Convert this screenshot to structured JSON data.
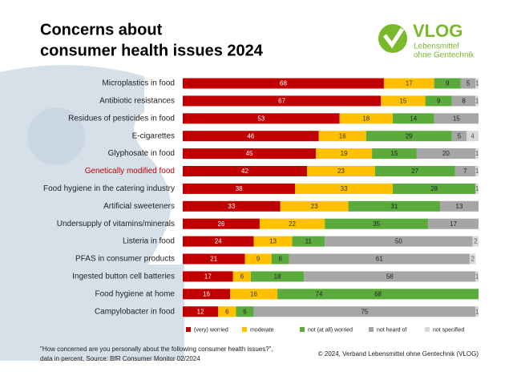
{
  "chart_data": {
    "type": "stacked_bar_horizontal",
    "title": [
      "Concerns about",
      "consumer health issues 2024"
    ],
    "logo": {
      "name": "VLOG",
      "subtitle": [
        "Lebensmittel",
        "ohne Gentechnik"
      ]
    },
    "categories": [
      "Microplastics in food",
      "Antibiotic resistances",
      "Residues of pesticides in food",
      "E-cigarettes",
      "Glyphosate in food",
      "Genetically modified food",
      "Food hygiene in the catering industry",
      "Artificial sweeteners",
      "Undersupply of vitamins/minerals",
      "Listeria in food",
      "PFAS in consumer products",
      "Ingested button cell batteries",
      "Food hygiene at home",
      "Campylobacter in food"
    ],
    "highlight": "Genetically modified food",
    "highlight_color": "#c00000",
    "xlim": [
      0,
      100
    ],
    "series": [
      {
        "name": "(very) worried",
        "color": "#c00000",
        "label_color": "#ffffff",
        "values": [
          68,
          67,
          53,
          46,
          45,
          42,
          38,
          33,
          26,
          24,
          21,
          17,
          16,
          12
        ]
      },
      {
        "name": "moderate",
        "color": "#ffc000",
        "label_color": "#333333",
        "values": [
          17,
          15,
          18,
          16,
          19,
          23,
          33,
          23,
          22,
          13,
          9,
          6,
          16,
          6
        ]
      },
      {
        "name": "not (at all) worried",
        "color": "#5aab3c",
        "label_color": "#222222",
        "values": [
          9,
          9,
          14,
          29,
          15,
          27,
          28,
          31,
          35,
          11,
          6,
          18,
          68,
          6
        ]
      },
      {
        "name": "not heard of",
        "color": "#a6a6a6",
        "label_color": "#222222",
        "values": [
          5,
          8,
          15,
          5,
          20,
          7,
          0,
          13,
          17,
          50,
          61,
          58,
          0,
          75
        ]
      },
      {
        "name": "not specified",
        "color": "#d9d9d9",
        "label_color": "#555555",
        "values": [
          1,
          1,
          0,
          4,
          1,
          1,
          1,
          0,
          0,
          2,
          2,
          1,
          0,
          1
        ]
      }
    ],
    "annotations": [
      "74"
    ],
    "footnote": [
      "\"How concerned are you personally about the following consumer health issues?\",",
      "data in percent, Source: BfR Consumer Monitor 02/2024"
    ],
    "copyright": "© 2024, Verband Lebensmittel ohne Gentechnik (VLOG)"
  }
}
